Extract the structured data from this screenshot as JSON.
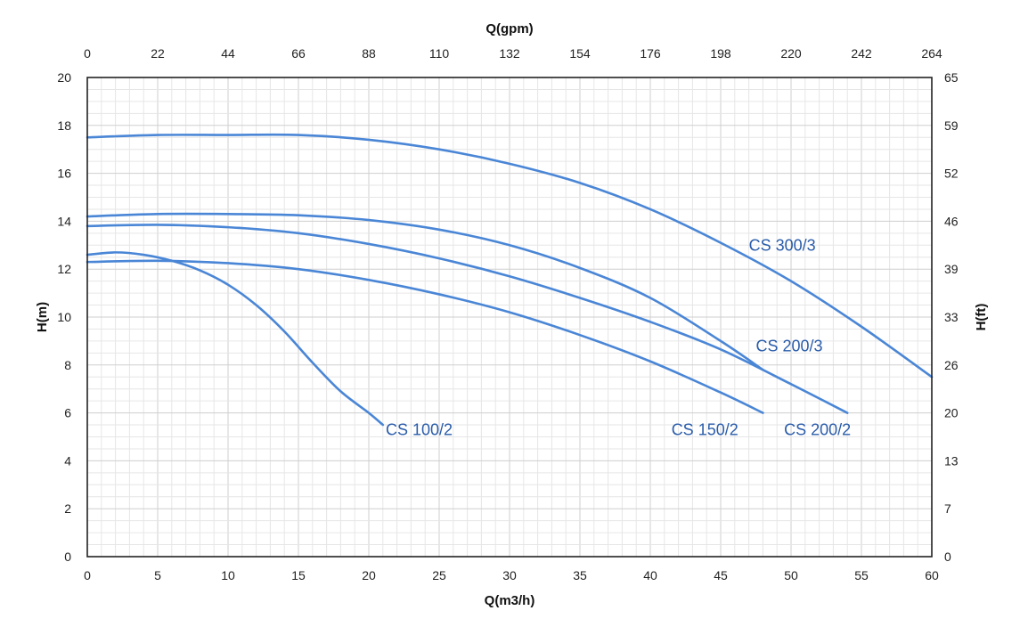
{
  "chart_data": {
    "type": "line",
    "xlabel": "Q(m3/h)",
    "ylabel": "H(m)",
    "x2label": "Q(gpm)",
    "y2label": "H(ft)",
    "xlim": [
      0,
      60
    ],
    "ylim": [
      0,
      20
    ],
    "x_ticks": [
      "0",
      "5",
      "10",
      "15",
      "20",
      "25",
      "30",
      "35",
      "40",
      "45",
      "50",
      "55",
      "60"
    ],
    "y_ticks": [
      "0",
      "2",
      "4",
      "6",
      "8",
      "10",
      "12",
      "14",
      "16",
      "18",
      "20"
    ],
    "x2_ticks": [
      "0",
      "22",
      "44",
      "66",
      "88",
      "110",
      "132",
      "154",
      "176",
      "198",
      "220",
      "242",
      "264"
    ],
    "y2_ticks": [
      "0",
      "7",
      "13",
      "20",
      "26",
      "33",
      "39",
      "46",
      "52",
      "59",
      "65"
    ],
    "grid": true,
    "line_color": "#4a86d6",
    "label_color": "#2a5caa",
    "series": [
      {
        "name": "CS 100/2",
        "x": [
          0,
          2,
          4,
          6,
          8,
          10,
          12,
          14,
          16,
          18,
          20,
          21
        ],
        "y": [
          12.6,
          12.7,
          12.6,
          12.35,
          11.95,
          11.35,
          10.5,
          9.4,
          8.1,
          6.9,
          6.0,
          5.5
        ]
      },
      {
        "name": "CS 150/2",
        "x": [
          0,
          5,
          10,
          15,
          20,
          25,
          30,
          35,
          40,
          45,
          48
        ],
        "y": [
          12.3,
          12.35,
          12.25,
          12.0,
          11.55,
          10.95,
          10.2,
          9.25,
          8.15,
          6.85,
          6.0
        ]
      },
      {
        "name": "CS 200/2",
        "x": [
          0,
          5,
          10,
          15,
          20,
          25,
          30,
          35,
          40,
          45,
          50,
          54
        ],
        "y": [
          13.8,
          13.85,
          13.75,
          13.5,
          13.05,
          12.45,
          11.7,
          10.8,
          9.8,
          8.65,
          7.2,
          6.0
        ]
      },
      {
        "name": "CS 200/3",
        "x": [
          0,
          5,
          10,
          15,
          20,
          25,
          30,
          35,
          40,
          45,
          48
        ],
        "y": [
          14.2,
          14.3,
          14.3,
          14.25,
          14.05,
          13.65,
          13.0,
          12.05,
          10.8,
          9.0,
          7.8
        ]
      },
      {
        "name": "CS 300/3",
        "x": [
          0,
          5,
          10,
          15,
          20,
          25,
          30,
          35,
          40,
          45,
          50,
          55,
          60
        ],
        "y": [
          17.5,
          17.6,
          17.6,
          17.6,
          17.4,
          17.0,
          16.4,
          15.6,
          14.5,
          13.1,
          11.5,
          9.6,
          7.5
        ]
      }
    ],
    "labels": [
      {
        "text": "CS 100/2",
        "x": 21.2,
        "y": 5.3
      },
      {
        "text": "CS 150/2",
        "x": 41.5,
        "y": 5.3
      },
      {
        "text": "CS 200/2",
        "x": 49.5,
        "y": 5.3
      },
      {
        "text": "CS 200/3",
        "x": 47.5,
        "y": 8.8
      },
      {
        "text": "CS 300/3",
        "x": 47.0,
        "y": 13.0
      }
    ]
  }
}
